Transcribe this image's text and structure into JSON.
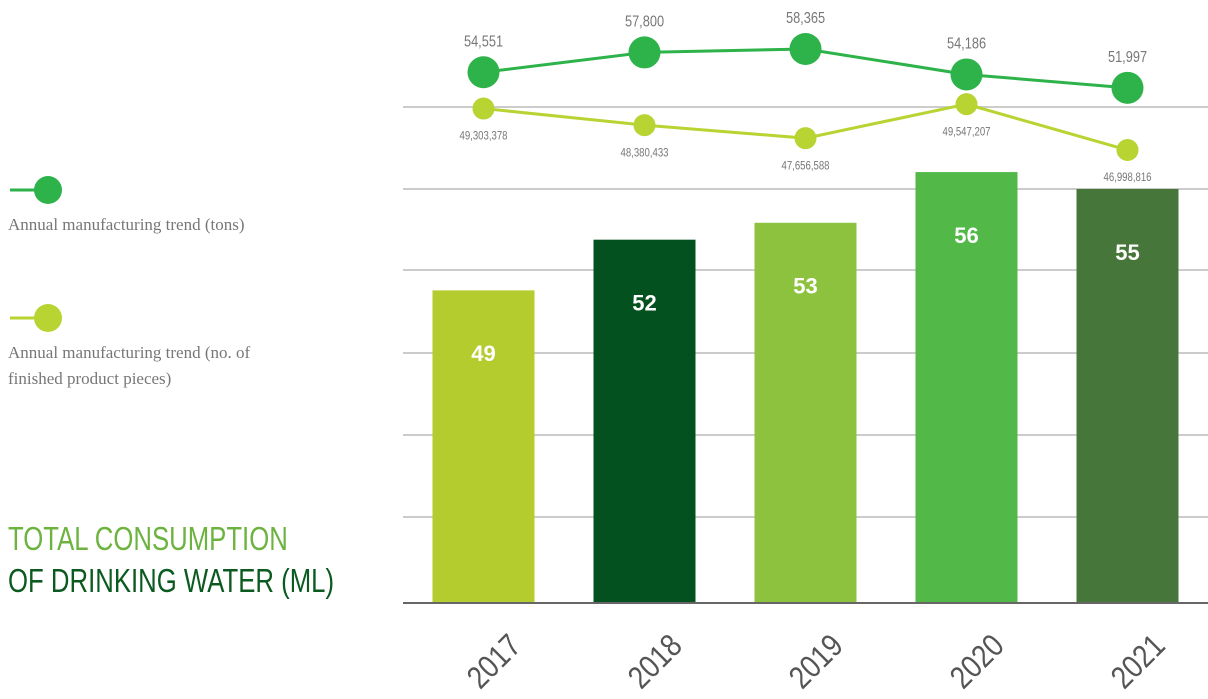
{
  "chart_data": [
    {
      "type": "bar",
      "title": "TOTAL CONSUMPTION\nOF DRINKING WATER (ML)",
      "categories": [
        "2017",
        "2018",
        "2019",
        "2020",
        "2021"
      ],
      "values": [
        49,
        52,
        53,
        56,
        55
      ],
      "colors": [
        "#b5cc2e",
        "#03511e",
        "#8dc23f",
        "#52b848",
        "#47763b"
      ],
      "ylim": [
        30.5,
        65
      ]
    },
    {
      "type": "line",
      "name": "Annual manufacturing trend (tons)",
      "color": "#2db34a",
      "values": [
        54551,
        57800,
        58365,
        54186,
        51997
      ],
      "value_labels": [
        "54,551",
        "57,800",
        "58,365",
        "54,186",
        "51,997"
      ],
      "ylim": [
        50000,
        60000
      ]
    },
    {
      "type": "line",
      "name": "Annual manufacturing trend (no. of finished product pieces)",
      "color": "#b8d432",
      "values": [
        49303378,
        48380433,
        47656588,
        49547207,
        46998816
      ],
      "value_labels": [
        "49,303,378",
        "48,380,433",
        "47,656,588",
        "49,547,207",
        "46,998,816"
      ],
      "ylim": [
        46000000,
        50000000
      ]
    }
  ]
}
